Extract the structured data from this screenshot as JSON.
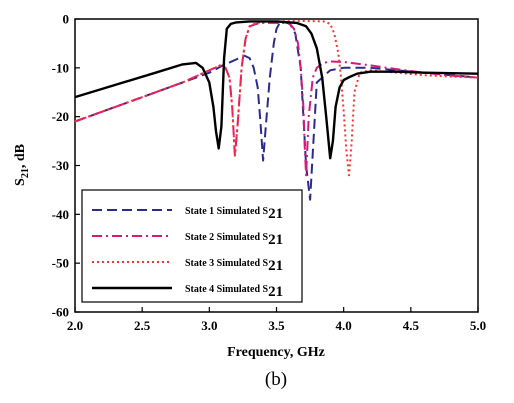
{
  "chart_data": {
    "type": "line",
    "xlabel": "Frequency, GHz",
    "ylabel_main": "S",
    "ylabel_sub": "21",
    "ylabel_tail": ", dB",
    "caption": "(b)",
    "xlim": [
      2.0,
      5.0
    ],
    "ylim": [
      -60,
      0
    ],
    "x_ticks": [
      2.0,
      2.5,
      3.0,
      3.5,
      4.0,
      4.5,
      5.0
    ],
    "x_tick_labels": [
      "2.0",
      "2.5",
      "3.0",
      "3.5",
      "4.0",
      "4.5",
      "5.0"
    ],
    "y_ticks": [
      0,
      -10,
      -20,
      -30,
      -40,
      -50,
      -60
    ],
    "y_tick_labels": [
      "0",
      "-10",
      "-20",
      "-30",
      "-40",
      "-50",
      "-60"
    ],
    "grid": false,
    "legend_position": "bottom-left",
    "series": [
      {
        "name": "State 1 Simulated S",
        "name_sub": "21",
        "color": "#2b2b8f",
        "dash": "10,5",
        "x": [
          2.0,
          2.3,
          2.6,
          2.8,
          3.0,
          3.1,
          3.2,
          3.26,
          3.3,
          3.33,
          3.36,
          3.38,
          3.4,
          3.42,
          3.45,
          3.48,
          3.5,
          3.52,
          3.54,
          3.56,
          3.58,
          3.6,
          3.64,
          3.68,
          3.72,
          3.75,
          3.8,
          3.9,
          4.0,
          4.2,
          4.4,
          4.6,
          4.8,
          5.0
        ],
        "y": [
          -21,
          -18,
          -15,
          -13,
          -11,
          -9.5,
          -8.3,
          -7.5,
          -8,
          -10,
          -14,
          -21,
          -29,
          -22,
          -12,
          -5,
          -2,
          -1,
          -0.8,
          -0.7,
          -0.8,
          -1,
          -3,
          -10,
          -30,
          -37,
          -13,
          -10.5,
          -10,
          -10,
          -10.5,
          -11,
          -11.5,
          -12
        ]
      },
      {
        "name": "State 2 Simulated S",
        "name_sub": "21",
        "color": "#d6197a",
        "dash": "10,4,2,4",
        "x": [
          2.0,
          2.3,
          2.6,
          2.8,
          3.0,
          3.08,
          3.12,
          3.15,
          3.17,
          3.19,
          3.21,
          3.24,
          3.27,
          3.3,
          3.35,
          3.4,
          3.45,
          3.5,
          3.55,
          3.6,
          3.63,
          3.66,
          3.68,
          3.7,
          3.71,
          3.72,
          3.74,
          3.77,
          3.8,
          3.85,
          3.9,
          4.0,
          4.2,
          4.4,
          4.6,
          4.8,
          5.0
        ],
        "y": [
          -21,
          -18,
          -15,
          -13,
          -10.5,
          -9.5,
          -10,
          -12,
          -18,
          -28,
          -22,
          -10,
          -4,
          -1.5,
          -1,
          -0.8,
          -0.8,
          -0.8,
          -0.8,
          -1,
          -2,
          -5,
          -10,
          -18,
          -26,
          -32,
          -20,
          -12,
          -10,
          -9,
          -8.7,
          -8.8,
          -9.5,
          -10.3,
          -11,
          -11.6,
          -12
        ]
      },
      {
        "name": "State 3 Simulated S",
        "name_sub": "21",
        "color": "#ff3030",
        "dash": "2,3",
        "x": [
          2.0,
          2.3,
          2.6,
          2.8,
          3.0,
          3.08,
          3.12,
          3.15,
          3.17,
          3.19,
          3.21,
          3.24,
          3.27,
          3.3,
          3.35,
          3.5,
          3.7,
          3.85,
          3.9,
          3.93,
          3.96,
          3.98,
          4.0,
          4.02,
          4.04,
          4.06,
          4.08,
          4.12,
          4.2,
          4.4,
          4.6,
          4.8,
          5.0
        ],
        "y": [
          -21,
          -18,
          -15,
          -13,
          -10.5,
          -9.5,
          -10,
          -12,
          -18,
          -28,
          -22,
          -10,
          -4,
          -1.5,
          -0.8,
          -0.5,
          -0.4,
          -0.5,
          -1,
          -3,
          -7,
          -12,
          -19,
          -27,
          -32,
          -25,
          -15,
          -11,
          -10.5,
          -11,
          -11.5,
          -11.8,
          -12
        ]
      },
      {
        "name": "State 4 Simulated S",
        "name_sub": "21",
        "color": "#000000",
        "dash": "",
        "x": [
          2.0,
          2.3,
          2.6,
          2.8,
          2.9,
          2.95,
          3.0,
          3.03,
          3.05,
          3.07,
          3.09,
          3.11,
          3.13,
          3.16,
          3.2,
          3.3,
          3.5,
          3.65,
          3.72,
          3.76,
          3.8,
          3.84,
          3.87,
          3.9,
          3.92,
          3.94,
          3.97,
          4.0,
          4.05,
          4.1,
          4.2,
          4.4,
          4.6,
          4.8,
          5.0
        ],
        "y": [
          -16,
          -13.5,
          -11,
          -9.3,
          -9,
          -10,
          -13,
          -18,
          -23,
          -26.5,
          -22,
          -8,
          -2,
          -1,
          -0.7,
          -0.5,
          -0.5,
          -0.8,
          -1.5,
          -3,
          -6,
          -12,
          -20,
          -28.5,
          -25,
          -18,
          -14,
          -12.5,
          -11.8,
          -11.2,
          -10.8,
          -10.8,
          -11,
          -11.1,
          -11.2
        ]
      }
    ]
  }
}
